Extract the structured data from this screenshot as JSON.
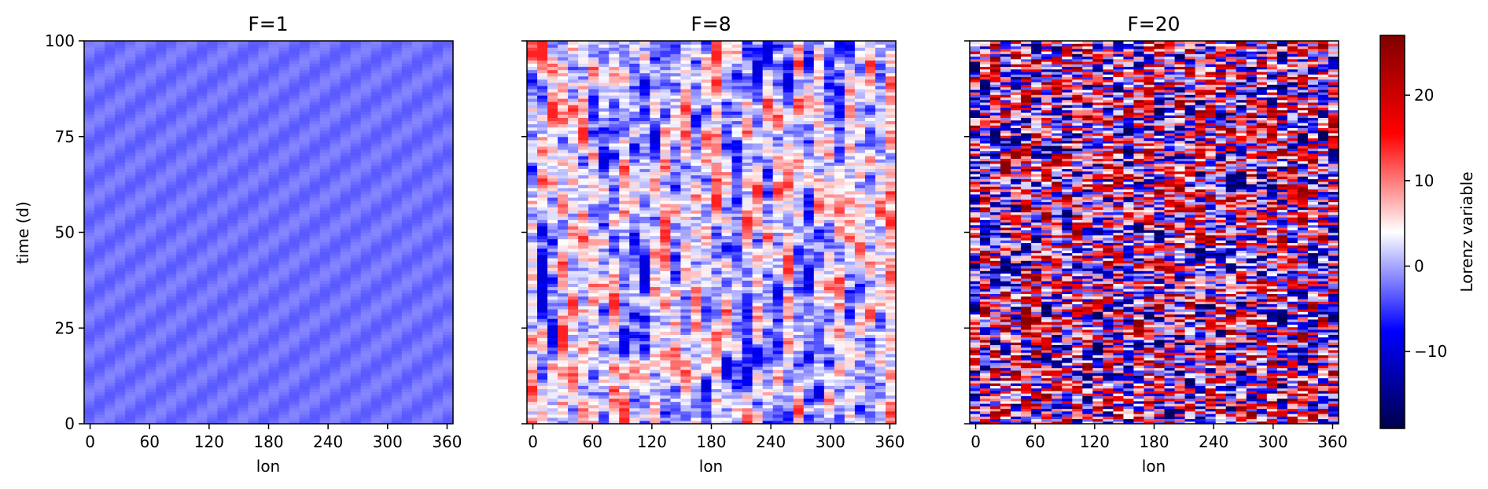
{
  "chart_data": [
    {
      "type": "heatmap",
      "title": "F=1",
      "xlabel": "lon",
      "ylabel": "time (d)",
      "xlim": [
        -6,
        366
      ],
      "ylim": [
        0,
        100
      ],
      "xticks": [
        0,
        60,
        120,
        180,
        240,
        300,
        360
      ],
      "yticks": [
        0,
        25,
        50,
        75,
        100
      ],
      "n_lon": 36,
      "value_range": [
        -3.5,
        -1.5
      ],
      "pattern": "smooth diagonal stripes drifting toward higher lon with time"
    },
    {
      "type": "heatmap",
      "title": "F=8",
      "xlabel": "lon",
      "ylabel": "",
      "xlim": [
        -6,
        366
      ],
      "ylim": [
        0,
        100
      ],
      "xticks": [
        0,
        60,
        120,
        180,
        240,
        300,
        360
      ],
      "yticks": [
        0,
        25,
        50,
        75,
        100
      ],
      "n_lon": 36,
      "value_range": [
        -10,
        14
      ],
      "pattern": "moderately chaotic alternating red and blue cells"
    },
    {
      "type": "heatmap",
      "title": "F=20",
      "xlabel": "lon",
      "ylabel": "",
      "xlim": [
        -6,
        366
      ],
      "ylim": [
        0,
        100
      ],
      "xticks": [
        0,
        60,
        120,
        180,
        240,
        300,
        360
      ],
      "yticks": [
        0,
        25,
        50,
        75,
        100
      ],
      "n_lon": 36,
      "value_range": [
        -18,
        26
      ],
      "pattern": "strongly chaotic fine-scale red and blue cells"
    }
  ],
  "colorbar": {
    "label": "Lorenz variable",
    "colormap": "seismic",
    "vmin": -19,
    "vmax": 27,
    "ticks": [
      -10,
      0,
      10,
      20
    ],
    "tick_labels": [
      "−10",
      "0",
      "10",
      "20"
    ]
  }
}
